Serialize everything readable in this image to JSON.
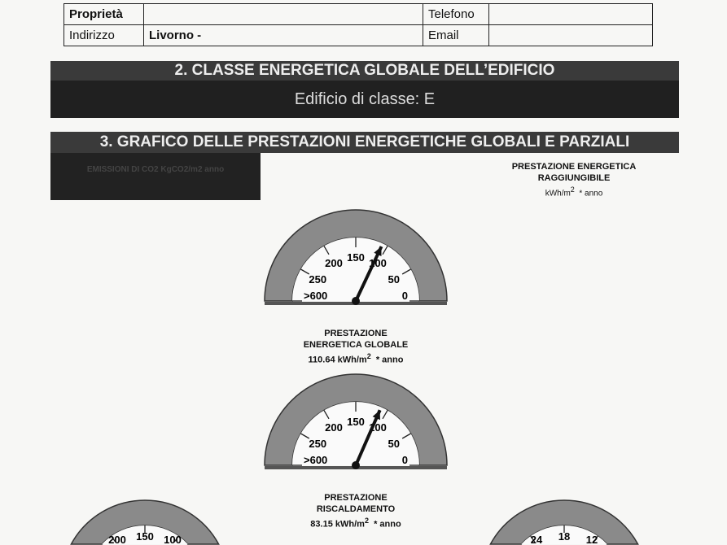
{
  "info_table": {
    "rows": [
      {
        "label1": "Proprietà",
        "value1": "",
        "label2": "Telefono",
        "value2": ""
      },
      {
        "label1": "Indirizzo",
        "value1": "Livorno -",
        "label2": "Email",
        "value2": ""
      }
    ]
  },
  "section2": {
    "title": "2.  CLASSE ENERGETICA GLOBALE DELL’EDIFICIO",
    "subtitle": "Edificio di classe: E"
  },
  "section3": {
    "title": "3. GRAFICO DELLE PRESTAZIONI ENERGETICHE GLOBALI E PARZIALI",
    "dark_box_text": "EMISSIONI DI CO2  KgCO2/m2 anno"
  },
  "gauges": [
    {
      "title1": "PRESTAZIONE ENERGETICA",
      "title2": "RAGGIUNGIBILE",
      "value": "",
      "unit": "kWh/m",
      "exp": "2",
      "suffix": "* anno",
      "needle_value": 108,
      "ticks": [
        "0",
        "50",
        "100",
        "150",
        "200",
        "250",
        ">600"
      ]
    },
    {
      "title1": "PRESTAZIONE",
      "title2": "ENERGETICA GLOBALE",
      "value": "110.64 kWh/m",
      "exp": "2",
      "suffix": "* anno",
      "needle_value": 110.64,
      "ticks": [
        "0",
        "50",
        "100",
        "150",
        "200",
        "250",
        ">600"
      ]
    },
    {
      "title1": "PRESTAZIONE",
      "title2": "RISCALDAMENTO",
      "value": "83.15 kWh/m",
      "exp": "2",
      "suffix": "* anno",
      "needle_value": 83.15,
      "ticks": [
        "200",
        "150",
        "100"
      ]
    },
    {
      "ticks": [
        "24",
        "18",
        "12"
      ]
    }
  ]
}
